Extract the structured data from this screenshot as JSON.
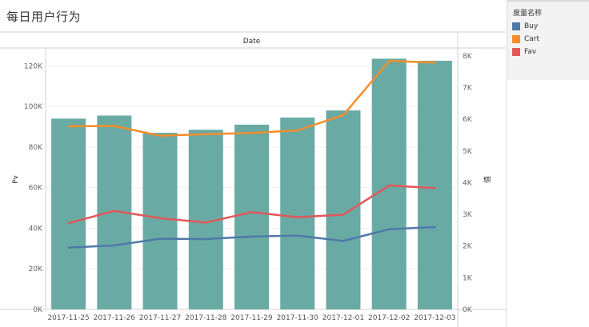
{
  "title": "每日用户行为",
  "legend": {
    "title": "度量名称",
    "items": [
      {
        "label": "Buy",
        "color": "#4e79a7"
      },
      {
        "label": "Cart",
        "color": "#f28e2b"
      },
      {
        "label": "Fav",
        "color": "#e15759"
      }
    ]
  },
  "chart_data": {
    "type": "bar",
    "header": "Date",
    "categories": [
      "2017-11-25",
      "2017-11-26",
      "2017-11-27",
      "2017-11-28",
      "2017-11-29",
      "2017-11-30",
      "2017-12-01",
      "2017-12-02",
      "2017-12-03"
    ],
    "bar_series": {
      "name": "Pv",
      "color": "#6aaaa4",
      "values": [
        94000,
        95500,
        87000,
        88500,
        91000,
        94500,
        98000,
        123500,
        122500
      ]
    },
    "line_series": [
      {
        "name": "Buy",
        "color": "#4e79a7",
        "values": [
          1950,
          2020,
          2230,
          2220,
          2300,
          2330,
          2160,
          2530,
          2600
        ]
      },
      {
        "name": "Cart",
        "color": "#f28e2b",
        "values": [
          5780,
          5790,
          5480,
          5530,
          5570,
          5650,
          6130,
          7840,
          7790
        ]
      },
      {
        "name": "Fav",
        "color": "#e15759",
        "values": [
          2720,
          3110,
          2880,
          2740,
          3070,
          2910,
          2990,
          3910,
          3830
        ]
      }
    ],
    "ylabel_left": "Pv",
    "ylabel_right": "值",
    "ylim_left": [
      0,
      128000
    ],
    "ylim_right": [
      0,
      8200
    ],
    "yticks_left": [
      "0K",
      "20K",
      "40K",
      "60K",
      "80K",
      "100K",
      "120K"
    ],
    "yticks_left_values": [
      0,
      20000,
      40000,
      60000,
      80000,
      100000,
      120000
    ],
    "yticks_right": [
      "0K",
      "1K",
      "2K",
      "3K",
      "4K",
      "5K",
      "6K",
      "7K",
      "8K"
    ],
    "yticks_right_values": [
      0,
      1000,
      2000,
      3000,
      4000,
      5000,
      6000,
      7000,
      8000
    ],
    "grid": true
  }
}
